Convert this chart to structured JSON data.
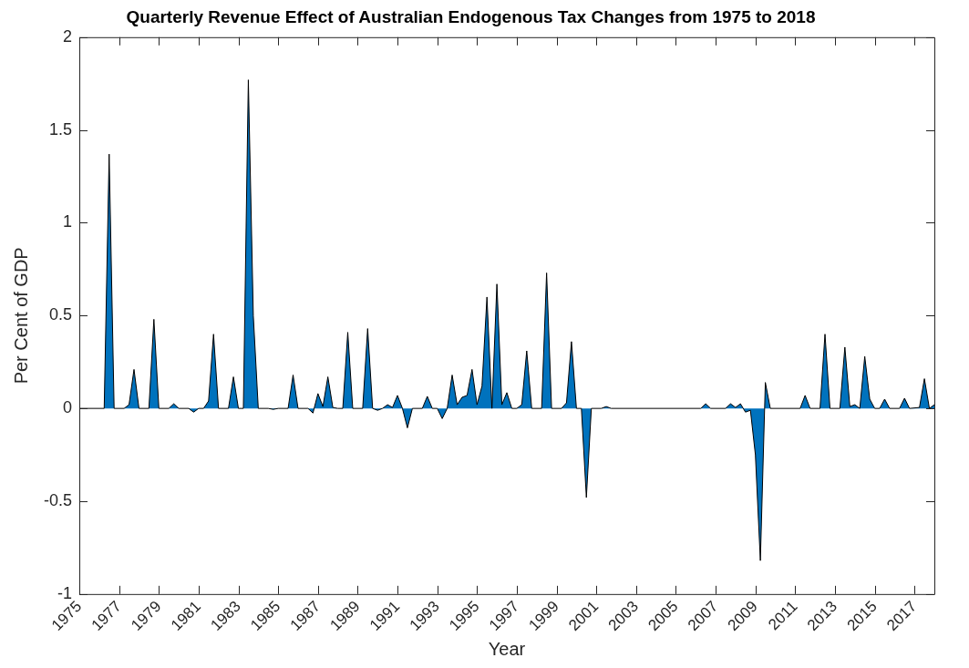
{
  "chart_data": {
    "type": "area",
    "title": "Quarterly Revenue Effect of Australian Endogenous Tax Changes from 1975 to 2018",
    "xlabel": "Year",
    "ylabel": "Per Cent of GDP",
    "x": [
      1975,
      1976.25,
      1976.5,
      1976.75,
      1977.25,
      1977.5,
      1977.75,
      1978,
      1978.5,
      1978.75,
      1979,
      1979.5,
      1979.75,
      1980,
      1980.5,
      1980.75,
      1981,
      1981.25,
      1981.5,
      1981.75,
      1982,
      1982.5,
      1982.75,
      1983,
      1983.25,
      1983.5,
      1983.75,
      1984,
      1984.5,
      1984.75,
      1985,
      1985.5,
      1985.75,
      1986,
      1986.5,
      1986.75,
      1987,
      1987.25,
      1987.5,
      1987.75,
      1988,
      1988.25,
      1988.5,
      1988.75,
      1989.25,
      1989.5,
      1989.75,
      1990,
      1990.25,
      1990.5,
      1990.75,
      1991,
      1991.25,
      1991.5,
      1991.75,
      1992.25,
      1992.5,
      1992.75,
      1993,
      1993.25,
      1993.5,
      1993.75,
      1994,
      1994.25,
      1994.5,
      1994.75,
      1995,
      1995.25,
      1995.5,
      1995.75,
      1996,
      1996.25,
      1996.5,
      1996.75,
      1997,
      1997.25,
      1997.5,
      1997.75,
      1998.25,
      1998.5,
      1998.75,
      1999.25,
      1999.5,
      1999.75,
      2000,
      2000.25,
      2000.5,
      2000.75,
      2001.25,
      2001.5,
      2001.75,
      2006.25,
      2006.5,
      2006.75,
      2007.5,
      2007.75,
      2008,
      2008.25,
      2008.5,
      2008.75,
      2009,
      2009.25,
      2009.5,
      2009.75,
      2011.25,
      2011.5,
      2011.75,
      2012.25,
      2012.5,
      2012.75,
      2013.25,
      2013.5,
      2013.75,
      2014,
      2014.25,
      2014.5,
      2014.75,
      2015,
      2015.25,
      2015.5,
      2015.75,
      2016.25,
      2016.5,
      2016.75,
      2017.25,
      2017.5,
      2017.75,
      2018
    ],
    "series": [
      {
        "color": "#0072bd",
        "values": [
          0,
          0,
          1.37,
          0,
          0,
          0.02,
          0.21,
          0,
          0,
          0.48,
          0,
          0,
          0.025,
          0,
          0,
          -0.02,
          0,
          0,
          0.04,
          0.4,
          0,
          0,
          0.17,
          0,
          0,
          1.77,
          0.5,
          0,
          0,
          -0.005,
          0,
          0,
          0.18,
          0,
          0,
          -0.025,
          0.08,
          0.01,
          0.17,
          0.005,
          0,
          0,
          0.41,
          0,
          0,
          0.43,
          0,
          -0.01,
          0,
          0.02,
          0.005,
          0.07,
          0,
          -0.105,
          0,
          0,
          0.065,
          0,
          0,
          -0.055,
          0,
          0.18,
          0.02,
          0.06,
          0.07,
          0.21,
          0.02,
          0.12,
          0.6,
          0,
          0.67,
          0.02,
          0.085,
          0,
          0,
          0.02,
          0.31,
          0,
          0,
          0.73,
          0,
          0,
          0.03,
          0.36,
          0,
          0,
          -0.48,
          0,
          0,
          0.01,
          0,
          0,
          0.025,
          0,
          0,
          0.025,
          0.005,
          0.025,
          -0.02,
          -0.01,
          -0.25,
          -0.82,
          0.14,
          0,
          0,
          0.07,
          0,
          0,
          0.4,
          0,
          0,
          0.33,
          0.01,
          0.02,
          0,
          0.28,
          0.05,
          0,
          0,
          0.05,
          0,
          0,
          0.055,
          0,
          0.005,
          0.16,
          0,
          0.02
        ]
      }
    ],
    "xlim": [
      1975,
      2018
    ],
    "xticks": [
      1975,
      1977,
      1979,
      1981,
      1983,
      1985,
      1987,
      1989,
      1991,
      1993,
      1995,
      1997,
      1999,
      2001,
      2003,
      2005,
      2007,
      2009,
      2011,
      2013,
      2015,
      2017
    ],
    "ylim": [
      -1,
      2
    ],
    "yticks": [
      -1,
      -0.5,
      0,
      0.5,
      1,
      1.5,
      2
    ],
    "grid": false,
    "legend": false
  }
}
